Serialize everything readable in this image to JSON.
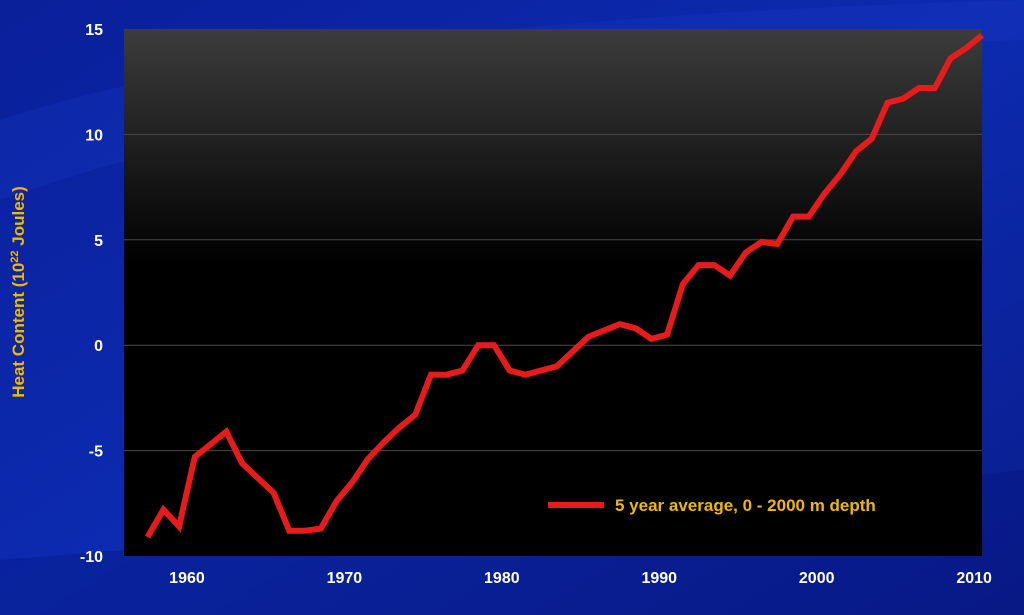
{
  "chart_data": {
    "type": "line",
    "ylabel_main": "Heat Content (10",
    "ylabel_sup": "22",
    "ylabel_tail": " Joules)",
    "xlim": [
      1956,
      2010.5
    ],
    "ylim": [
      -10,
      15
    ],
    "x_ticks": [
      1960,
      1970,
      1980,
      1990,
      2000,
      2010
    ],
    "y_ticks": [
      15,
      10,
      5,
      0,
      -5,
      -10
    ],
    "grid": true,
    "legend_position": "bottom-right",
    "series": [
      {
        "name": "5 year average, 0 - 2000 m depth",
        "color": "#e81b1b",
        "x": [
          1957.5,
          1958.5,
          1959.5,
          1960.5,
          1961.5,
          1962.5,
          1963.5,
          1964.5,
          1965.5,
          1966.5,
          1967.5,
          1968.5,
          1969.5,
          1970.5,
          1971.5,
          1972.5,
          1973.5,
          1974.5,
          1975.5,
          1976.5,
          1977.5,
          1978.5,
          1979.5,
          1980.5,
          1981.5,
          1982.5,
          1983.5,
          1984.5,
          1985.5,
          1986.5,
          1987.5,
          1988.5,
          1989.5,
          1990.5,
          1991.5,
          1992.5,
          1993.5,
          1994.5,
          1995.5,
          1996.5,
          1997.5,
          1998.5,
          1999.5,
          2000.5,
          2001.5,
          2002.5,
          2003.5,
          2004.5,
          2005.5,
          2006.5,
          2007.5,
          2008.5,
          2009.5,
          2010.5
        ],
        "y": [
          -9.1,
          -7.8,
          -8.6,
          -5.3,
          -4.7,
          -4.1,
          -5.6,
          -6.3,
          -7.0,
          -8.8,
          -8.8,
          -8.7,
          -7.4,
          -6.5,
          -5.4,
          -4.6,
          -3.9,
          -3.3,
          -1.4,
          -1.4,
          -1.2,
          0.0,
          0.0,
          -1.2,
          -1.4,
          -1.2,
          -1.0,
          -0.3,
          0.4,
          0.7,
          1.0,
          0.8,
          0.3,
          0.5,
          2.9,
          3.8,
          3.8,
          3.3,
          4.4,
          4.9,
          4.8,
          6.1,
          6.1,
          7.2,
          8.1,
          9.2,
          9.8,
          11.5,
          11.7,
          12.2,
          12.2,
          13.6,
          14.1,
          14.7
        ]
      }
    ]
  }
}
